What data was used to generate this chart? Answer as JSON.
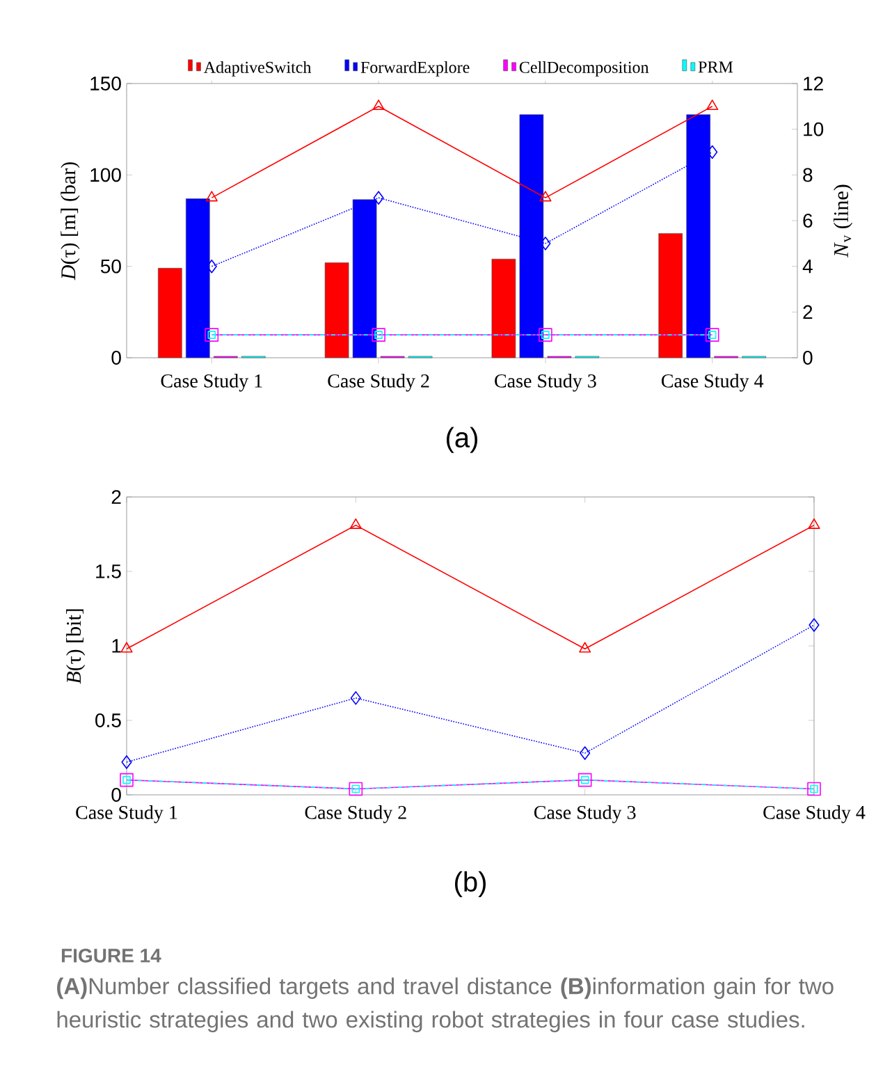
{
  "chart_data": [
    {
      "type": "bar",
      "ylabel": "*D*(τ) [m] (bar)",
      "y2label": "*N*$_{v}$ (line)",
      "categories": [
        "Case Study 1",
        "Case Study 2",
        "Case Study 3",
        "Case Study 4"
      ],
      "ylim": [
        0,
        150
      ],
      "yticks": [
        0,
        50,
        100,
        150
      ],
      "y2lim": [
        0,
        12
      ],
      "y2ticks": [
        0,
        2,
        4,
        6,
        8,
        10,
        12
      ],
      "legend": "top",
      "series": [
        {
          "name": "AdaptiveSwitch",
          "color": "#ff0000",
          "values": [
            49,
            52,
            54,
            68
          ]
        },
        {
          "name": "ForwardExplore",
          "color": "#0000ff",
          "values": [
            87,
            86.5,
            133,
            133
          ]
        },
        {
          "name": "CellDecomposition",
          "color": "#ff00ff",
          "values": [
            0.8,
            0.8,
            0.8,
            0.8
          ]
        },
        {
          "name": "PRM",
          "color": "#00ffff",
          "values": [
            0.8,
            0.8,
            0.8,
            0.8
          ]
        },
        {
          "type": "line",
          "axis": "y2",
          "color": "#ff0000",
          "marker": "triangle",
          "line_style": "solid",
          "values": [
            7,
            11,
            7,
            11
          ]
        },
        {
          "type": "line",
          "axis": "y2",
          "color": "#0000ff",
          "marker": "diamond",
          "line_style": "dotted",
          "values": [
            4,
            7,
            5,
            9
          ]
        },
        {
          "type": "line",
          "axis": "y2",
          "color": "#ff00ff",
          "marker": "square",
          "line_style": "solid",
          "values": [
            1,
            1,
            1,
            1
          ]
        },
        {
          "type": "line",
          "axis": "y2",
          "color": "#00ffff",
          "marker": "square",
          "line_style": "dashed",
          "values": [
            1,
            1,
            1,
            1
          ]
        }
      ],
      "annotations": [
        "(a)"
      ]
    },
    {
      "type": "line",
      "ylabel": "*B*(τ) [bit]",
      "categories": [
        "Case Study 1",
        "Case Study 2",
        "Case Study 3",
        "Case Study 4"
      ],
      "ylim": [
        0,
        2
      ],
      "yticks": [
        0,
        0.5,
        1,
        1.5,
        2
      ],
      "series": [
        {
          "color": "#ff0000",
          "marker": "triangle",
          "line_style": "solid",
          "values": [
            0.98,
            1.81,
            0.98,
            1.81
          ]
        },
        {
          "color": "#0000ff",
          "marker": "diamond",
          "line_style": "dotted",
          "values": [
            0.22,
            0.65,
            0.28,
            1.14
          ]
        },
        {
          "color": "#ff00ff",
          "marker": "square",
          "line_style": "solid",
          "values": [
            0.1,
            0.04,
            0.1,
            0.04
          ]
        },
        {
          "color": "#00ffff",
          "marker": "square",
          "line_style": "dashed",
          "values": [
            0.1,
            0.04,
            0.1,
            0.04
          ]
        }
      ],
      "annotations": [
        "(b)",
        "FIGURE 14",
        "**(A)**Number classified targets and travel distance **(B)**information gain for two heuristic strategies and two existing robot strategies in four case studies."
      ]
    }
  ]
}
